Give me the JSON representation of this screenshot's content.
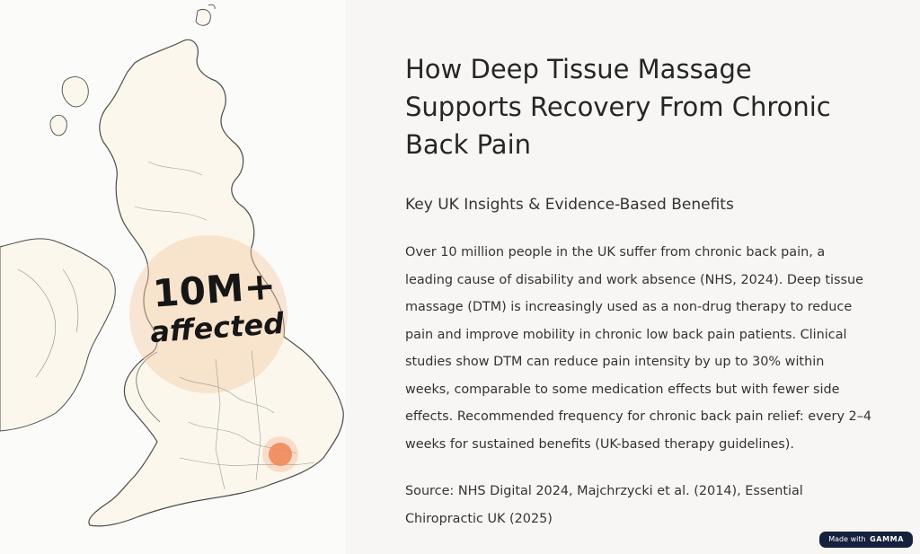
{
  "map": {
    "callout_number": "10M+",
    "callout_word": "affected",
    "colors": {
      "land": "#fbf7ec",
      "outline": "#4b4b4b",
      "highlight": "#f4c9a6",
      "hotspot": "#ee8a5c"
    }
  },
  "content": {
    "title": "How Deep Tissue Massage Supports Recovery From Chronic Back Pain",
    "subtitle": "Key UK Insights & Evidence-Based Benefits",
    "body": "Over 10 million people in the UK suffer from chronic back pain, a leading cause of disability and work absence (NHS, 2024). Deep tissue massage (DTM) is increasingly used as a non-drug therapy to reduce pain and improve mobility in chronic low back pain patients. Clinical studies show DTM can reduce pain intensity by up to 30% within weeks, comparable to some medication effects but with fewer side effects. Recommended frequency for chronic back pain relief: every 2–4 weeks for sustained benefits (UK-based therapy guidelines).",
    "source": "Source: NHS Digital 2024, Majchrzycki et al. (2014), Essential Chiropractic UK (2025)"
  },
  "badge": {
    "prefix": "Made with",
    "brand": "GAMMA"
  }
}
